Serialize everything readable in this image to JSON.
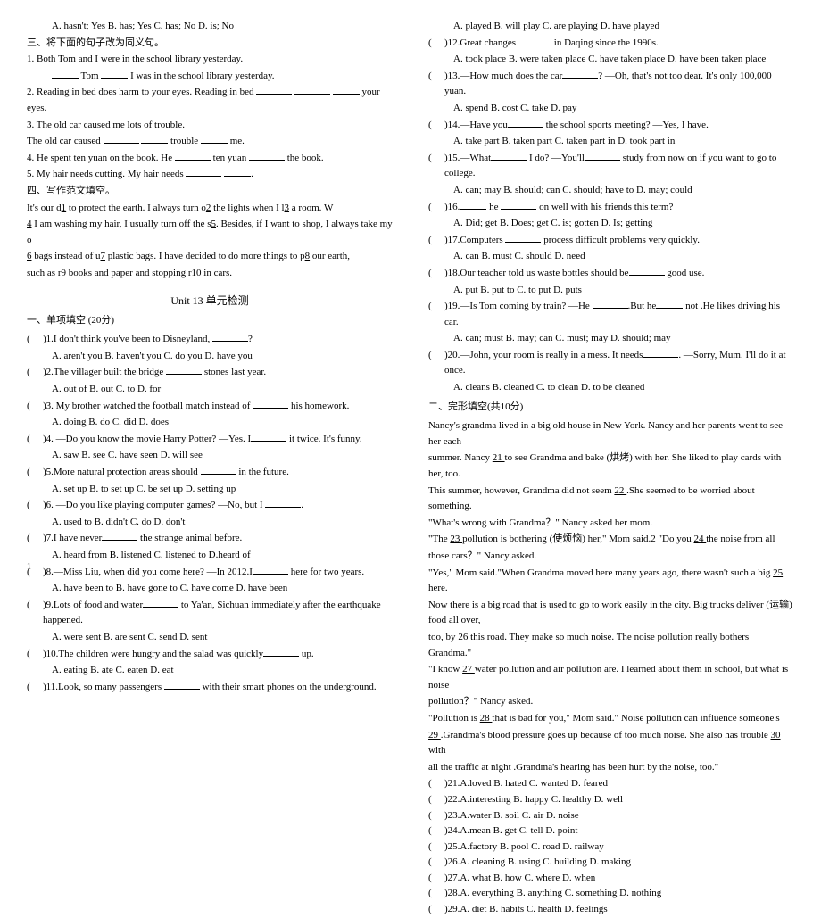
{
  "left": {
    "topOpts": "A. hasn't; Yes     B. has; Yes     C. has; No     D. is; No",
    "secHeader": "三、将下面的句子改为同义句。",
    "s1a": "1. Both Tom and I were in the school library yesterday.",
    "s1b_pre": "",
    "s1b_mid": " Tom ",
    "s1b_post": " I was in the school library yesterday.",
    "s2": "2. Reading in bed does harm to your eyes.   Reading in bed ",
    "s2b": " your eyes.",
    "s3": "3. The old car caused me lots of trouble.",
    "s3b_pre": "    The old car caused ",
    "s3b_mid": " trouble ",
    "s3b_post": " me.",
    "s4": "4. He spent ten yuan on the book.     He ",
    "s4b": " ten yuan ",
    "s4c": " the book.",
    "s5": "5. My hair needs cutting.     My hair needs ",
    "sec4": "四、写作范文填空。",
    "p1": "    It's our d",
    "p1a": "1",
    "p1b": " to protect the earth. I always turn o",
    "p1c": "2",
    "p1d": " the lights when I l",
    "p1e": "3",
    "p1f": " a room. W",
    "p2": "",
    "p2a": "4",
    "p2b": " I am washing my hair, I usually turn off the s",
    "p2c": "5",
    "p2d": ". Besides, if I want to shop, I always take my o",
    "p3": "",
    "p3a": "6",
    "p3b": " bags instead of u",
    "p3c": "7",
    "p3d": " plastic bags. I have decided to do more things to p",
    "p3e": "8",
    "p3f": " our earth,",
    "p4": "such as r",
    "p4a": "9",
    "p4b": " books and paper and stopping r",
    "p4c": "10",
    "p4d": " in cars.",
    "unit": "Unit 13   单元检测",
    "part1": "一、单项填空  (20分)",
    "q1": ")1.I don't think you've been to Disneyland, ",
    "q1b": "?",
    "q1o": "A.  aren't you     B.  haven't you   C.  do you            D.  have you",
    "q2": ")2.The villager built the bridge ",
    "q2b": " stones last year.",
    "q2o": "A.  out of    B.  out            C.  to           D.  for",
    "q3": ")3. My brother watched the football match instead of ",
    "q3b": " his homework.",
    "q3o": "A.  doing      B.  do          C.  did         D.  does",
    "q4": ")4. —Do you know the movie Harry Potter?       —Yes. I",
    "q4b": " it twice. It's funny.",
    "q4o": "A.  saw        B.  see        C.  have seen   D.  will see",
    "q5": ")5.More natural protection areas should ",
    "q5b": " in the future.",
    "q5o": "A.  set up      B.  to set up     C.  be set up   D.  setting up",
    "q6": ")6. —Do you like playing computer games?     —No, but I ",
    "q6b": ".",
    "q6o": "A.  used to      B.  didn't        C.  do         D.  don't",
    "q7": ")7.I have never",
    "q7b": " the strange animal before.",
    "q7o": "A.  heard from  B.  listened    C.  listened to  D.heard of",
    "q8": ")8.—Miss Liu, when did you come here?    —In 2012.I",
    "q8b": " here for two years.",
    "q8o": "A.  have been to         B.  have gone to    C.  have come         D.  have been",
    "q9": ")9.Lots of food and water",
    "q9b": " to Ya'an, Sichuan immediately after the earthquake happened.",
    "q9o": "A.  were sent         B.  are sent        C.  send             D.  sent",
    "q10": ")10.The children were hungry and the salad was quickly",
    "q10b": " up.",
    "q10o": "A.  eating             B.  ate               C.  eaten           D.  eat",
    "q11": ")11.Look, so many passengers ",
    "q11b": " with their smart phones on the underground.",
    "pageNum": "1"
  },
  "right": {
    "q11o": "A.  played          B.  will play       C.  are playing      D.  have played",
    "q12": ")12.Great changes",
    "q12b": " in Daqing since the 1990s.",
    "q12o": "A.  took place   B.  were taken place    C.  have taken place    D.  have been taken place",
    "q13": ")13.—How much does the car",
    "q13b": "?       —Oh, that's not too dear. It's only 100,000 yuan.",
    "q13o": "A.  spend       B.  cost      C.  take       D.  pay",
    "q14": ")14.—Have you",
    "q14b": " the school sports meeting?    —Yes, I have.",
    "q14o": "A.  take part         B.  taken part    C.  taken part in         D.  took part in",
    "q15": ")15.—What",
    "q15b": " I do? —You'll",
    "q15c": " study from now on if you want to go to college.",
    "q15o": "A.  can; may           B.  should; can    C.  should; have to       D.  may; could",
    "q16": ")16.",
    "q16b": " he ",
    "q16c": " on well with his friends this term?",
    "q16o": "A.  Did; get           B.  Does; get    C.  is; gotten         D.  Is; getting",
    "q17": ")17.Computers ",
    "q17b": " process difficult problems very quickly.",
    "q17o": "A.  can             B.  must        C.  should           D.  need",
    "q18": ")18.Our teacher told us waste bottles should be",
    "q18b": " good use.",
    "q18o": "A.  put          B.  put to       C.  to put       D.  puts",
    "q19": ")19.—Is Tom coming by train?    —He ",
    "q19b": ".But he",
    "q19c": " not .He likes driving his car.",
    "q19o": "A.  can; must           B.  may; can    C.  must; may             D.  should; may",
    "q20": ")20.—John, your room is really in a mess. It needs",
    "q20b": ".     —Sorry, Mum. I'll do it at once.",
    "q20o": "A.  cleans         B.  cleaned        C.  to clean      D.  to be cleaned",
    "part2": "二、完形填空(共10分)",
    "cp1": "    Nancy's grandma lived in a big old house in New York. Nancy and her parents went to see her each",
    "cp2a": "summer. Nancy ",
    "cp2b": " to see Grandma and bake (烘烤) with her. She liked to play cards with her, too.",
    "cp3a": "This summer, however, Grandma did not seem ",
    "cp3b": ".She seemed to be worried about something.",
    "cp4": "    \"What's wrong with Grandma？\" Nancy asked her mom.",
    "cp5a": "    \"The ",
    "cp5b": " pollution is bothering (使烦恼) her,\" Mom said.2 \"Do you ",
    "cp5c": " the noise from all",
    "cp6": "those cars？\" Nancy asked.",
    "cp7a": "    \"Yes,\" Mom said.\"When Grandma moved here many years ago, there wasn't such a big ",
    "cp7b": " here.",
    "cp8": "Now there is a big road that is used to go to work easily in the city. Big trucks deliver (运输) food all over,",
    "cp9a": "too, by ",
    "cp9b": " this road. They make so much noise. The noise pollution really bothers Grandma.\"",
    "cp10a": "    \"I know ",
    "cp10b": " water pollution and air pollution are. I learned about them in school, but what is noise",
    "cp11": "pollution？\" Nancy asked.",
    "cp12a": "    \"Pollution is ",
    "cp12b": " that is bad for you,\" Mom said.\" Noise pollution can influence someone's",
    "cp13a": "",
    "cp13b": ".Grandma's blood pressure goes up because of too much noise. She also has trouble ",
    "cp13c": " with",
    "cp14": "all the traffic at night .Grandma's hearing has been hurt by the noise, too.\"",
    "o21": ")21.A.loved            B.  hated           C.  wanted         D.  feared",
    "o22": ")22.A.interesting      B.  happy          C.  healthy         D.  well",
    "o23": ")23.A.water           B.  soil             C.  air              D.  noise",
    "o24": ")24.A.mean           B.  get             C.  tell              D.  point",
    "o25": ")25.A.factory          B.  pool            C.  road            D.  railway",
    "o26": ")26.A. cleaning        B.  using           C.  building        D.  making",
    "o27": ")27.A. what           B.  how            C.  where          D.  when",
    "o28": ")28.A. everything     B.  anything        C.  something     D.  nothing",
    "o29": ")29.A. diet            B.  habits           C.  health          D.  feelings"
  }
}
